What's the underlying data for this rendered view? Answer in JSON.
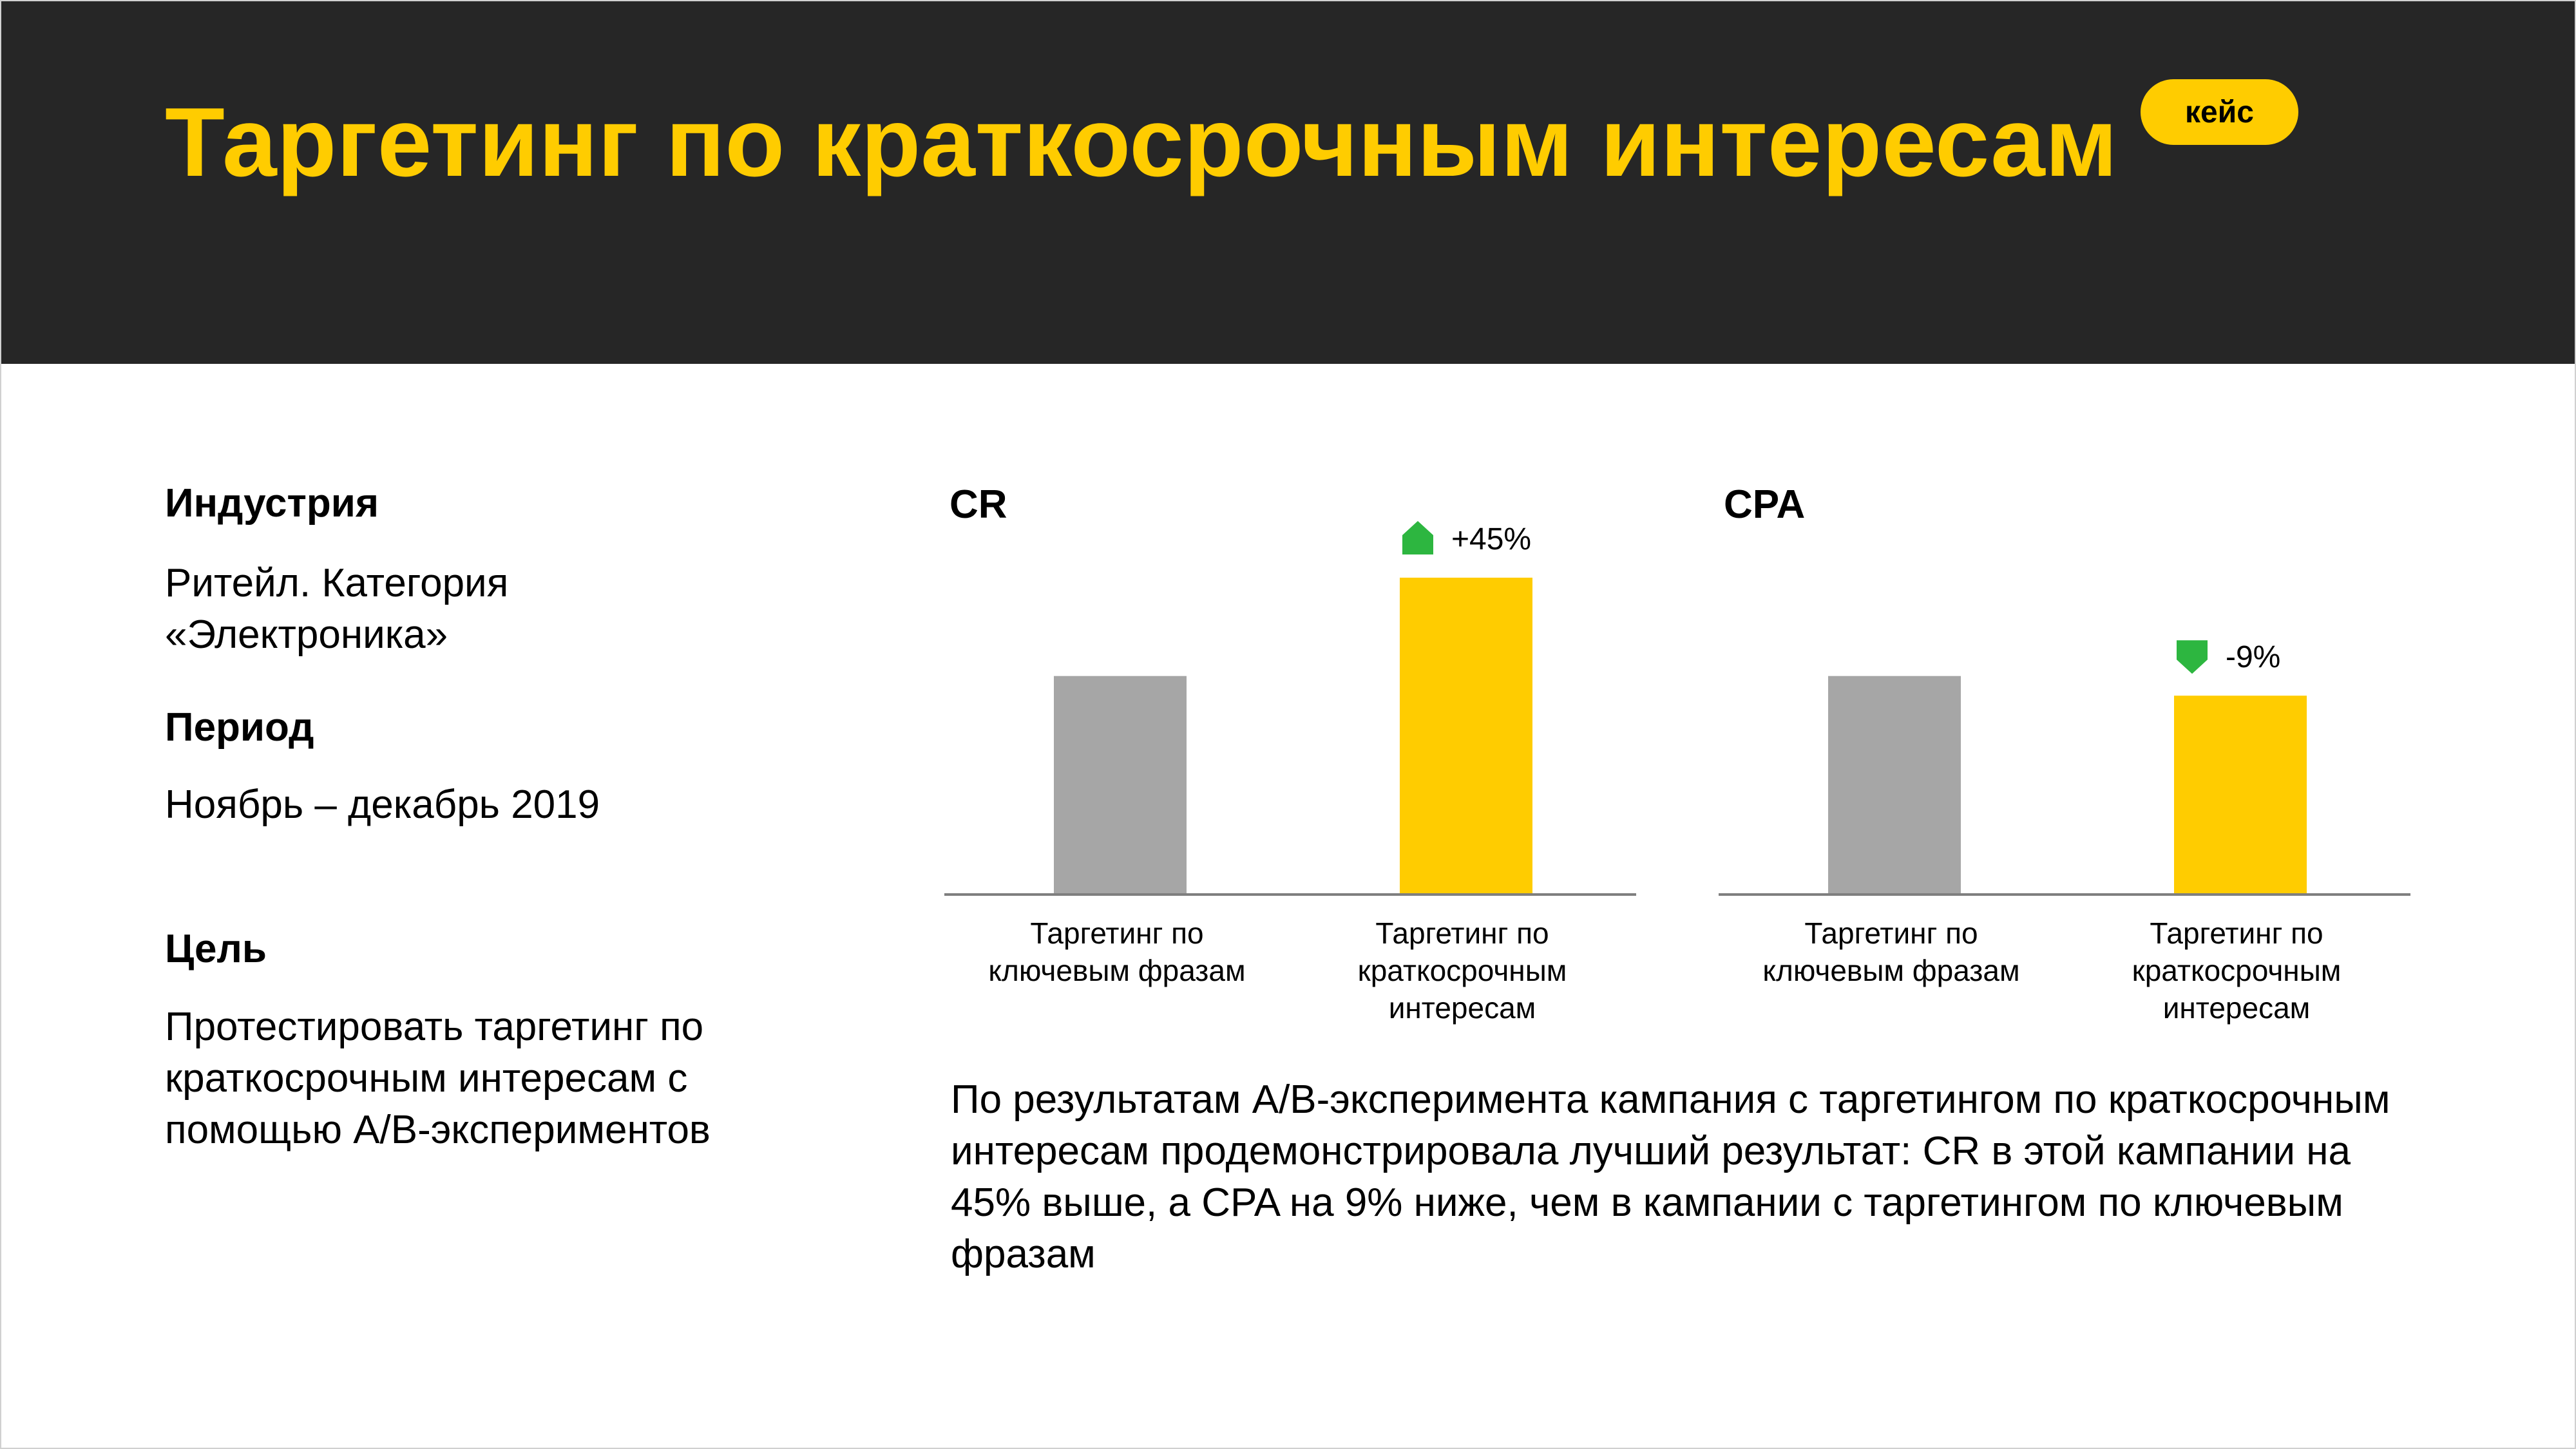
{
  "title": "Таргетинг по краткосрочным интересам",
  "badge": "кейс",
  "colors": {
    "header_bg": "#262626",
    "accent": "#ffcc00",
    "baseline_bar": "#a6a6a6",
    "indicator": "#2db640"
  },
  "info": {
    "industry_label": "Индустрия",
    "industry_line1": "Ритейл. Категория",
    "industry_line2": "«Электроника»",
    "period_label": "Период",
    "period_value": "Ноябрь – декабрь 2019",
    "goal_label": "Цель",
    "goal_line1": "Протестировать таргетинг по",
    "goal_line2": "краткосрочным интересам с",
    "goal_line3": "помощью A/B-экспериментов"
  },
  "summary": "По результатам A/B-эксперимента кампания с таргетингом по краткосрочным интересам продемонстрировала лучший результат: CR в этой кампании на 45% выше, а CPA на 9% ниже, чем в кампании с таргетингом по ключевым фразам",
  "chart_data": [
    {
      "type": "bar",
      "title": "CR",
      "categories": [
        [
          "Таргетинг по",
          "ключевым фразам"
        ],
        [
          "Таргетинг по",
          "краткосрочным",
          "интересам"
        ]
      ],
      "values": [
        100,
        145
      ],
      "colors": [
        "#a6a6a6",
        "#ffcc00"
      ],
      "change": {
        "label": "+45%",
        "direction": "up",
        "bar_index": 1
      },
      "ylim": [
        0,
        145
      ]
    },
    {
      "type": "bar",
      "title": "CPA",
      "categories": [
        [
          "Таргетинг по",
          "ключевым фразам"
        ],
        [
          "Таргетинг по",
          "краткосрочным",
          "интересам"
        ]
      ],
      "values": [
        100,
        91
      ],
      "colors": [
        "#a6a6a6",
        "#ffcc00"
      ],
      "change": {
        "label": "-9%",
        "direction": "down",
        "bar_index": 1
      },
      "ylim": [
        0,
        145
      ]
    }
  ]
}
